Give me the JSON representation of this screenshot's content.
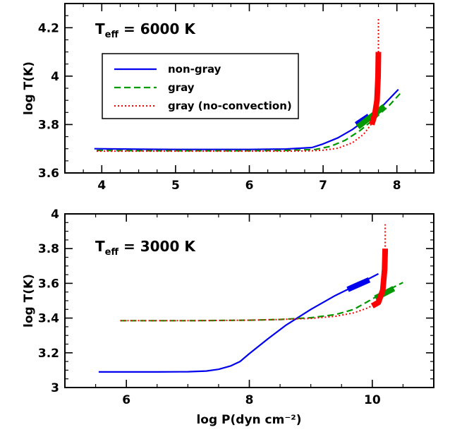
{
  "chart_data": [
    {
      "type": "line",
      "annotation": {
        "prefix": "T",
        "subscript": "eff",
        "suffix": " = 6000 K"
      },
      "xlabel": "",
      "ylabel": "log T(K)",
      "xlim": [
        3.5,
        8.5
      ],
      "ylim": [
        3.6,
        4.3
      ],
      "xticks": [
        "4",
        "5",
        "6",
        "7",
        "8"
      ],
      "yticks": [
        "3.6",
        "3.8",
        "4",
        "4.2"
      ],
      "legend": {
        "placement": "upper-left"
      },
      "series": [
        {
          "name": "non-gray",
          "color": "#0000ee",
          "style": "solid",
          "x": [
            3.9,
            4.5,
            5.0,
            5.5,
            6.0,
            6.5,
            6.85,
            7.0,
            7.2,
            7.4,
            7.6,
            7.8,
            8.02
          ],
          "y": [
            3.7,
            3.698,
            3.697,
            3.697,
            3.697,
            3.699,
            3.705,
            3.72,
            3.745,
            3.78,
            3.825,
            3.875,
            3.945
          ],
          "thick": {
            "x": [
              7.45,
              7.62
            ],
            "y": [
              3.8,
              3.835
            ]
          }
        },
        {
          "name": "gray",
          "color": "#009900",
          "style": "dashed",
          "x": [
            3.93,
            4.5,
            5.0,
            5.5,
            6.0,
            6.5,
            6.9,
            7.1,
            7.3,
            7.5,
            7.7,
            7.9,
            8.05
          ],
          "y": [
            3.693,
            3.692,
            3.692,
            3.692,
            3.692,
            3.693,
            3.697,
            3.71,
            3.735,
            3.775,
            3.825,
            3.88,
            3.93
          ],
          "thick": {
            "x": [
              7.47,
              7.83
            ],
            "y": [
              3.79,
              3.875
            ]
          }
        },
        {
          "name": "gray (no-convection)",
          "color": "#ff0000",
          "style": "dotted",
          "x": [
            3.93,
            4.5,
            5.0,
            5.5,
            6.0,
            6.5,
            6.8,
            7.0,
            7.2,
            7.4,
            7.55,
            7.65,
            7.72,
            7.75,
            7.75
          ],
          "y": [
            3.69,
            3.69,
            3.69,
            3.69,
            3.69,
            3.69,
            3.691,
            3.694,
            3.702,
            3.725,
            3.76,
            3.8,
            3.88,
            4.05,
            4.24
          ],
          "thick": {
            "x": [
              7.66,
              7.7,
              7.73,
              7.745,
              7.75
            ],
            "y": [
              3.8,
              3.84,
              3.9,
              4.0,
              4.1
            ]
          }
        }
      ]
    },
    {
      "type": "line",
      "annotation": {
        "prefix": "T",
        "subscript": "eff",
        "suffix": " = 3000 K"
      },
      "xlabel": "log P(dyn cm⁻²)",
      "ylabel": "log T(K)",
      "xlim": [
        5,
        11
      ],
      "ylim": [
        3.0,
        4.0
      ],
      "xticks": [
        "6",
        "8",
        "10"
      ],
      "yticks": [
        "3",
        "3.2",
        "3.4",
        "3.6",
        "3.8",
        "4"
      ],
      "series": [
        {
          "name": "non-gray",
          "color": "#0000ee",
          "style": "solid",
          "x": [
            5.55,
            6.0,
            6.5,
            7.0,
            7.3,
            7.5,
            7.7,
            7.85,
            8.0,
            8.3,
            8.6,
            9.0,
            9.4,
            9.8,
            10.1
          ],
          "y": [
            3.09,
            3.09,
            3.09,
            3.091,
            3.095,
            3.105,
            3.125,
            3.15,
            3.195,
            3.28,
            3.36,
            3.45,
            3.53,
            3.6,
            3.655
          ],
          "thick": {
            "x": [
              9.6,
              9.95
            ],
            "y": [
              3.565,
              3.62
            ]
          }
        },
        {
          "name": "gray",
          "color": "#009900",
          "style": "dashed",
          "x": [
            5.9,
            6.5,
            7.0,
            7.5,
            8.0,
            8.5,
            9.0,
            9.4,
            9.7,
            9.9,
            10.1,
            10.3,
            10.5
          ],
          "y": [
            3.385,
            3.385,
            3.385,
            3.386,
            3.388,
            3.392,
            3.402,
            3.42,
            3.45,
            3.49,
            3.53,
            3.57,
            3.605
          ],
          "thick": {
            "x": [
              10.05,
              10.35
            ],
            "y": [
              3.515,
              3.57
            ]
          }
        },
        {
          "name": "gray (no-convection)",
          "color": "#ff0000",
          "style": "dotted",
          "x": [
            5.9,
            6.5,
            7.0,
            7.5,
            8.0,
            8.5,
            9.0,
            9.4,
            9.7,
            9.9,
            10.05,
            10.15,
            10.2,
            10.21,
            10.21
          ],
          "y": [
            3.385,
            3.385,
            3.385,
            3.386,
            3.388,
            3.392,
            3.398,
            3.41,
            3.43,
            3.455,
            3.48,
            3.52,
            3.6,
            3.75,
            3.94
          ],
          "thick": {
            "x": [
              10.0,
              10.1,
              10.17,
              10.2,
              10.21
            ],
            "y": [
              3.47,
              3.49,
              3.56,
              3.68,
              3.8
            ]
          }
        }
      ]
    }
  ]
}
